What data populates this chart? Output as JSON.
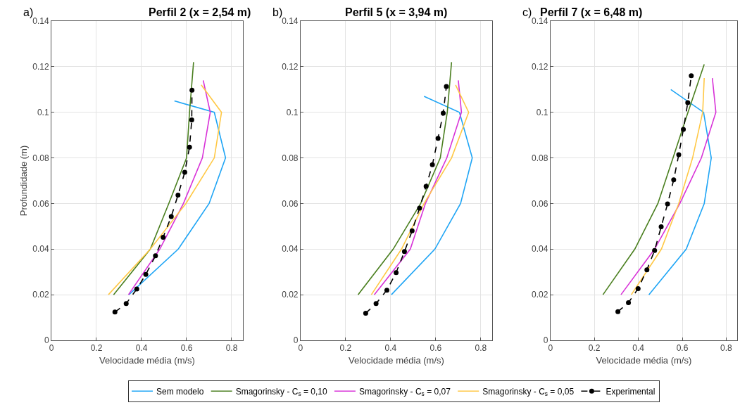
{
  "chart_data": [
    {
      "type": "line",
      "title": "Perfil 2 (x = 2,54 m)",
      "xlabel": "Velocidade média (m/s)",
      "ylabel": "Profundidade (m)",
      "annotations": [
        "a)"
      ],
      "xlim": [
        0,
        0.85
      ],
      "ylim": [
        0,
        0.14
      ],
      "xticks": [
        0,
        0.2,
        0.4,
        0.6,
        0.8
      ],
      "yticks": [
        0,
        0.02,
        0.04,
        0.06,
        0.08,
        0.1,
        0.12,
        0.14
      ],
      "grid": true,
      "legend": "bottom",
      "series": [
        {
          "name": "Sem modelo",
          "color": "#1fa5f5",
          "x": [
            0.546,
            0.723,
            0.773,
            0.7,
            0.563,
            0.344
          ],
          "values": [
            0.105,
            0.1,
            0.08,
            0.06,
            0.04,
            0.02
          ]
        },
        {
          "name": "Smagorinsky - C$_{s}$ = 0,10",
          "color": "#4a7f1f",
          "x": [
            0.276,
            0.439,
            0.521,
            0.6,
            0.613,
            0.631
          ],
          "values": [
            0.02,
            0.04,
            0.06,
            0.08,
            0.1,
            0.122
          ]
        },
        {
          "name": "Smagorinsky - C$_{s}$ = 0,07",
          "color": "#d832d8",
          "x": [
            0.342,
            0.481,
            0.586,
            0.67,
            0.705,
            0.674
          ],
          "values": [
            0.02,
            0.04,
            0.06,
            0.08,
            0.1,
            0.114
          ]
        },
        {
          "name": "Smagorinsky - C$_{s}$ = 0,05",
          "color": "#ffc845",
          "x": [
            0.253,
            0.439,
            0.597,
            0.723,
            0.755,
            0.665
          ],
          "values": [
            0.02,
            0.04,
            0.06,
            0.08,
            0.1,
            0.112
          ]
        },
        {
          "name": "Experimental",
          "color": "#000000",
          "marker": "circle",
          "line_style": "dashed",
          "x": [
            0.282,
            0.332,
            0.379,
            0.419,
            0.462,
            0.496,
            0.532,
            0.562,
            0.592,
            0.613,
            0.623,
            0.624
          ],
          "values": [
            0.0124,
            0.0161,
            0.0225,
            0.0289,
            0.0371,
            0.0452,
            0.0543,
            0.0637,
            0.0737,
            0.0847,
            0.0967,
            0.1097
          ]
        }
      ]
    },
    {
      "type": "line",
      "title": "Perfil 5 (x = 3,94 m)",
      "xlabel": "Velocidade média (m/s)",
      "annotations": [
        "b)"
      ],
      "xlim": [
        0,
        0.85
      ],
      "ylim": [
        0,
        0.14
      ],
      "xticks": [
        0,
        0.2,
        0.4,
        0.6,
        0.8
      ],
      "yticks": [
        0,
        0.02,
        0.04,
        0.06,
        0.08,
        0.1,
        0.12,
        0.14
      ],
      "grid": true,
      "series": [
        {
          "color": "#1fa5f5",
          "x": [
            0.548,
            0.705,
            0.762,
            0.71,
            0.596,
            0.403
          ],
          "values": [
            0.107,
            0.1,
            0.08,
            0.06,
            0.04,
            0.02
          ]
        },
        {
          "color": "#4a7f1f",
          "x": [
            0.255,
            0.411,
            0.533,
            0.62,
            0.651,
            0.67
          ],
          "values": [
            0.02,
            0.04,
            0.06,
            0.08,
            0.1,
            0.122
          ]
        },
        {
          "color": "#d832d8",
          "x": [
            0.327,
            0.487,
            0.554,
            0.649,
            0.714,
            0.7
          ],
          "values": [
            0.02,
            0.04,
            0.06,
            0.08,
            0.1,
            0.114
          ]
        },
        {
          "color": "#ffc845",
          "x": [
            0.314,
            0.448,
            0.548,
            0.67,
            0.746,
            0.688
          ],
          "values": [
            0.02,
            0.04,
            0.06,
            0.08,
            0.1,
            0.112
          ]
        },
        {
          "color": "#000000",
          "marker": "circle",
          "line_style": "dashed",
          "x": [
            0.289,
            0.335,
            0.383,
            0.424,
            0.461,
            0.495,
            0.528,
            0.557,
            0.585,
            0.61,
            0.633,
            0.647
          ],
          "values": [
            0.0119,
            0.0161,
            0.022,
            0.0297,
            0.0389,
            0.048,
            0.058,
            0.0675,
            0.077,
            0.0886,
            0.0996,
            0.1113
          ]
        }
      ]
    },
    {
      "type": "line",
      "title": "Perfil 7 (x = 6,48 m)",
      "xlabel": "Velocidade média (m/s)",
      "annotations": [
        "c)"
      ],
      "xlim": [
        0,
        0.85
      ],
      "ylim": [
        0,
        0.14
      ],
      "xticks": [
        0,
        0.2,
        0.4,
        0.6,
        0.8
      ],
      "yticks": [
        0,
        0.02,
        0.04,
        0.06,
        0.08,
        0.1,
        0.12,
        0.14
      ],
      "grid": true,
      "series": [
        {
          "color": "#1fa5f5",
          "x": [
            0.548,
            0.697,
            0.732,
            0.7,
            0.618,
            0.448
          ],
          "values": [
            0.11,
            0.1,
            0.08,
            0.06,
            0.04,
            0.02
          ]
        },
        {
          "color": "#4a7f1f",
          "x": [
            0.239,
            0.384,
            0.489,
            0.558,
            0.626,
            0.7
          ],
          "values": [
            0.02,
            0.04,
            0.06,
            0.08,
            0.1,
            0.121
          ]
        },
        {
          "color": "#d832d8",
          "x": [
            0.321,
            0.474,
            0.589,
            0.687,
            0.753,
            0.737
          ],
          "values": [
            0.02,
            0.04,
            0.06,
            0.08,
            0.1,
            0.115
          ]
        },
        {
          "color": "#ffc845",
          "x": [
            0.368,
            0.505,
            0.584,
            0.647,
            0.693,
            0.7
          ],
          "values": [
            0.02,
            0.04,
            0.06,
            0.08,
            0.1,
            0.115
          ]
        },
        {
          "color": "#000000",
          "marker": "circle",
          "line_style": "dashed",
          "x": [
            0.307,
            0.355,
            0.399,
            0.439,
            0.474,
            0.504,
            0.533,
            0.561,
            0.584,
            0.605,
            0.625,
            0.641
          ],
          "values": [
            0.0126,
            0.0165,
            0.0227,
            0.0309,
            0.0394,
            0.0498,
            0.0598,
            0.0704,
            0.0814,
            0.0925,
            0.1042,
            0.116
          ]
        }
      ]
    }
  ]
}
